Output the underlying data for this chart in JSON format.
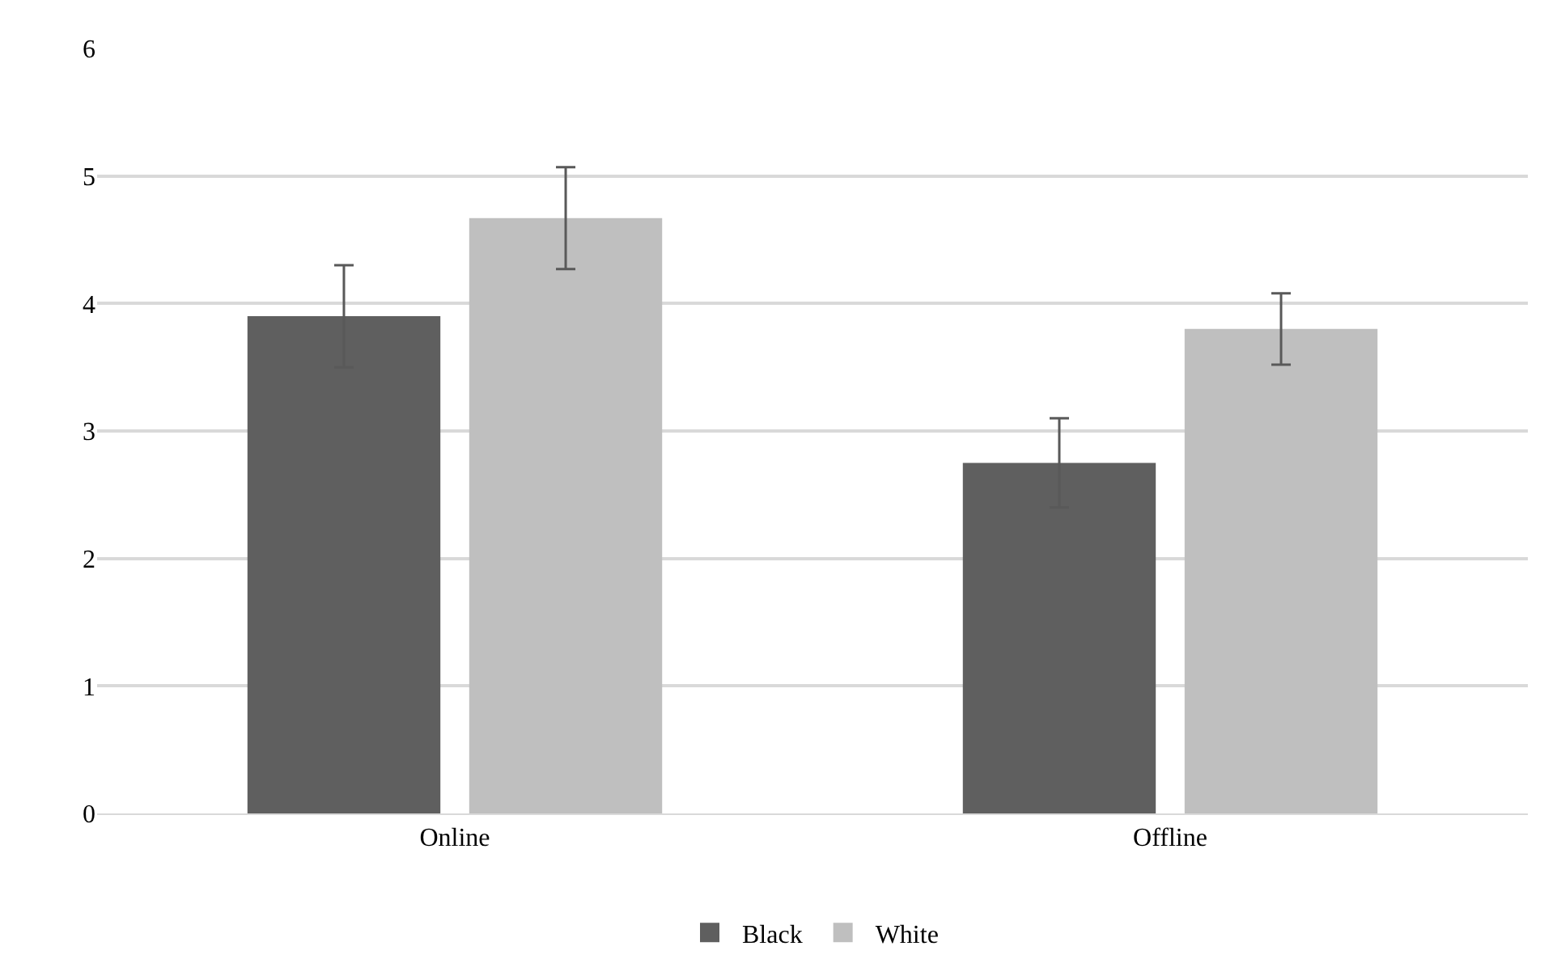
{
  "chart_data": {
    "type": "bar",
    "categories": [
      "Online",
      "Offline"
    ],
    "series": [
      {
        "name": "Black",
        "color": "#5f5f5f",
        "values": [
          3.9,
          2.75
        ],
        "errors": [
          0.4,
          0.35
        ]
      },
      {
        "name": "White",
        "color": "#bfbfbf",
        "values": [
          4.67,
          3.8
        ],
        "errors": [
          0.4,
          0.28
        ]
      }
    ],
    "ylim": [
      0,
      6
    ],
    "yticks": [
      0,
      1,
      2,
      3,
      4,
      5,
      6
    ],
    "grid": "y",
    "legend": "bottom"
  }
}
